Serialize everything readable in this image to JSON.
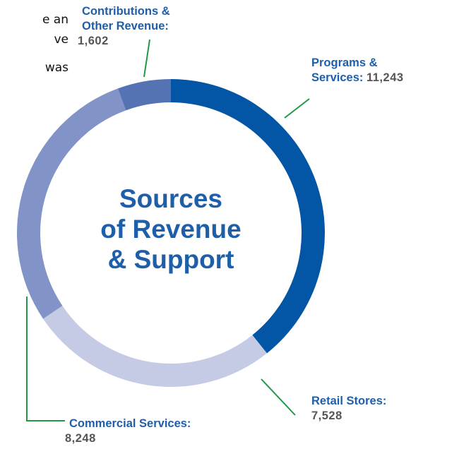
{
  "clipped_text": [
    "e an",
    "ve",
    "was"
  ],
  "chart_data": {
    "type": "donut",
    "title": "Sources of Revenue & Support",
    "categories": [
      "Programs & Services:",
      "Retail Stores:",
      "Commercial Services:",
      "Contributions & Other Revenue:"
    ],
    "values": [
      11243,
      7528,
      8248,
      1602
    ],
    "value_labels": [
      "11,243",
      "7,528",
      "8,248",
      "1,602"
    ],
    "colors": [
      "#0355a6",
      "#c5cbe4",
      "#8293c7",
      "#5572b2"
    ]
  }
}
